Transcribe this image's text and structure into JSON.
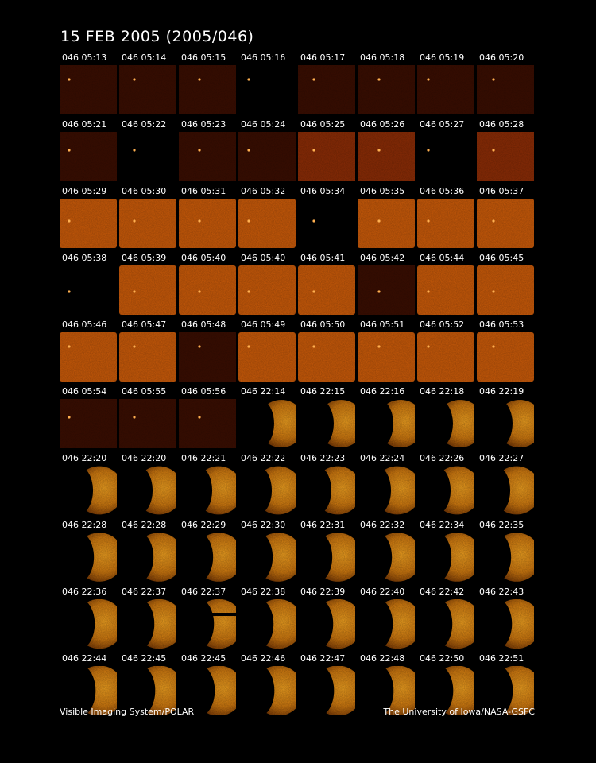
{
  "header": {
    "title": "15 FEB 2005  (2005/046)"
  },
  "grid": {
    "rows": [
      [
        "046 05:13",
        "046 05:14",
        "046 05:15",
        "046 05:16",
        "046 05:17",
        "046 05:18",
        "046 05:19",
        "046 05:20"
      ],
      [
        "046 05:21",
        "046 05:22",
        "046 05:23",
        "046 05:24",
        "046 05:25",
        "046 05:26",
        "046 05:27",
        "046 05:28"
      ],
      [
        "046 05:29",
        "046 05:30",
        "046 05:31",
        "046 05:32",
        "046 05:34",
        "046 05:35",
        "046 05:36",
        "046 05:37"
      ],
      [
        "046 05:38",
        "046 05:39",
        "046 05:40",
        "046 05:40",
        "046 05:41",
        "046 05:42",
        "046 05:44",
        "046 05:45"
      ],
      [
        "046 05:46",
        "046 05:47",
        "046 05:48",
        "046 05:49",
        "046 05:50",
        "046 05:51",
        "046 05:52",
        "046 05:53"
      ],
      [
        "046 05:54",
        "046 05:55",
        "046 05:56",
        "046 22:14",
        "046 22:15",
        "046 22:16",
        "046 22:18",
        "046 22:19"
      ],
      [
        "046 22:20",
        "046 22:20",
        "046 22:21",
        "046 22:22",
        "046 22:23",
        "046 22:24",
        "046 22:26",
        "046 22:27"
      ],
      [
        "046 22:28",
        "046 22:28",
        "046 22:29",
        "046 22:30",
        "046 22:31",
        "046 22:32",
        "046 22:34",
        "046 22:35"
      ],
      [
        "046 22:36",
        "046 22:37",
        "046 22:37",
        "046 22:38",
        "046 22:39",
        "046 22:40",
        "046 22:42",
        "046 22:43"
      ],
      [
        "046 22:44",
        "046 22:45",
        "046 22:45",
        "046 22:46",
        "046 22:47",
        "046 22:48",
        "046 22:50",
        "046 22:51"
      ]
    ]
  },
  "footer": {
    "left": "Visible Imaging System/POLAR",
    "right": "The University of Iowa/NASA-GSFC"
  }
}
